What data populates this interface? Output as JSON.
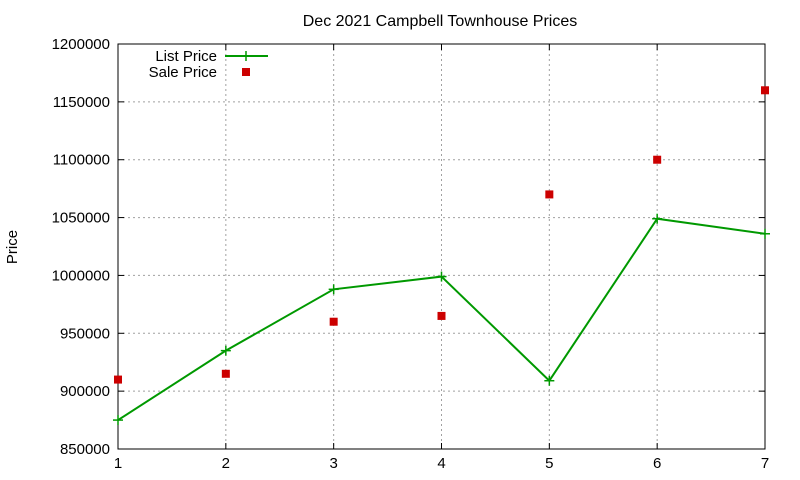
{
  "chart_data": {
    "type": "line",
    "title": "Dec 2021 Campbell Townhouse Prices",
    "xlabel": "",
    "ylabel": "Price",
    "x": [
      1,
      2,
      3,
      4,
      5,
      6,
      7
    ],
    "xlim": [
      1,
      7
    ],
    "ylim": [
      850000,
      1200000
    ],
    "yticks": [
      850000,
      900000,
      950000,
      1000000,
      1050000,
      1100000,
      1150000,
      1200000
    ],
    "grid": true,
    "legend_position": "top-left",
    "series": [
      {
        "name": "List Price",
        "style": "lines+points",
        "marker": "plus",
        "color": "#009900",
        "values": [
          875000,
          935000,
          988000,
          999000,
          909000,
          1049000,
          1036000
        ]
      },
      {
        "name": "Sale Price",
        "style": "points",
        "marker": "square",
        "color": "#cc0000",
        "values": [
          910000,
          915000,
          960000,
          965000,
          1070000,
          1100000,
          1160000
        ]
      }
    ]
  }
}
